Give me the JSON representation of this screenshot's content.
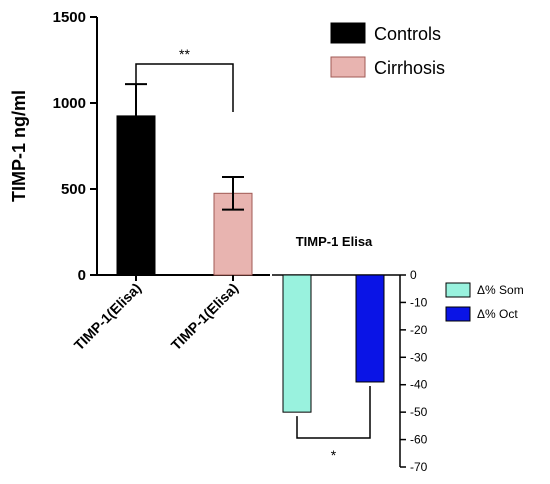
{
  "chart_data": [
    {
      "type": "bar",
      "title": "",
      "ylabel": "TIMP-1 ng/ml",
      "ylim": [
        0,
        1500
      ],
      "yticks": [
        0,
        500,
        1000,
        1500
      ],
      "categories": [
        "TIMP-1(Elisa)",
        "TIMP-1(Elisa)"
      ],
      "series": [
        {
          "name": "Controls",
          "color": "#000000",
          "value": 925,
          "error": 185
        },
        {
          "name": "Cirrhosis",
          "color": "#e8b4b0",
          "value": 475,
          "error": 95
        }
      ],
      "legend": "top-right",
      "significance": "**",
      "grid": false
    },
    {
      "type": "bar",
      "title": "TIMP-1 Elisa",
      "ylim": [
        -70,
        0
      ],
      "yticks": [
        0,
        -10,
        -20,
        -30,
        -40,
        -50,
        -60,
        -70
      ],
      "y_axis_side": "right",
      "series": [
        {
          "name": "Δ% Som",
          "color": "#99f2de",
          "value": -50
        },
        {
          "name": "Δ% Oct",
          "color": "#0a14e6",
          "value": -39
        }
      ],
      "legend": "right",
      "significance": "*",
      "grid": false
    }
  ]
}
